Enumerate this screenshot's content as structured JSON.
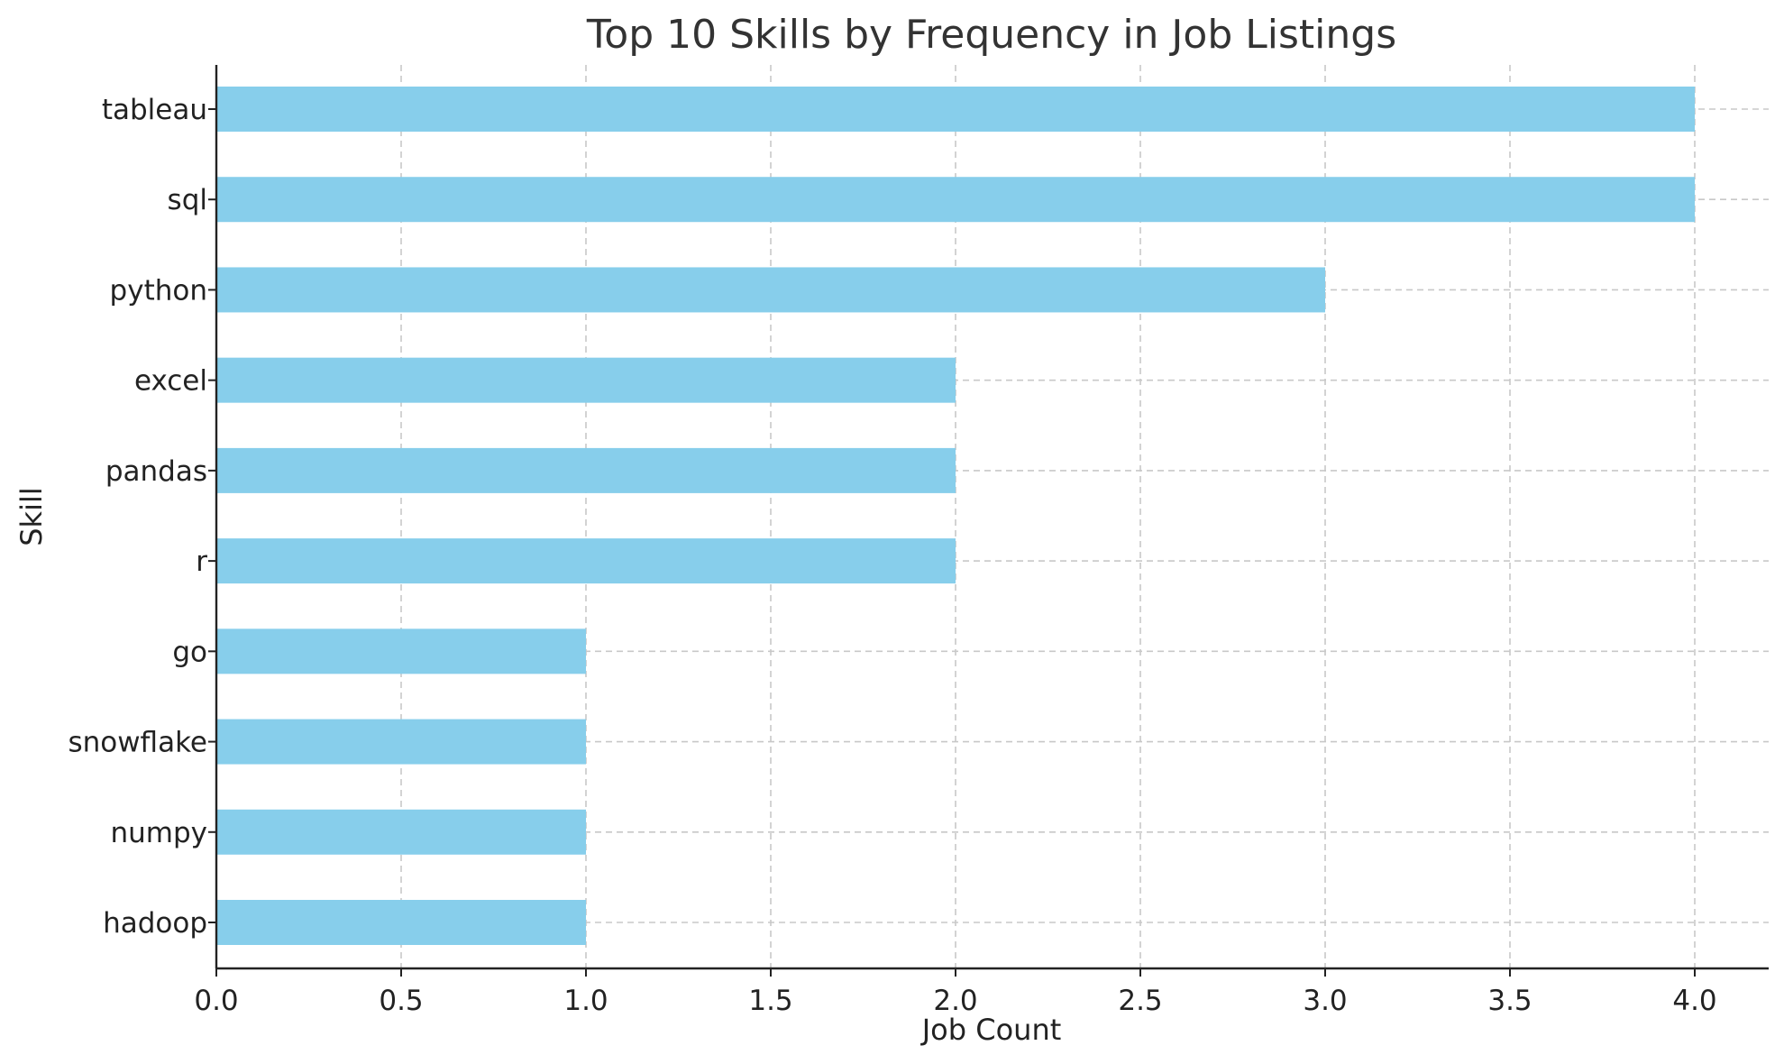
{
  "chart_data": {
    "type": "bar",
    "orientation": "horizontal",
    "title": "Top 10 Skills by Frequency in Job Listings",
    "xlabel": "Job Count",
    "ylabel": "Skill",
    "categories": [
      "tableau",
      "sql",
      "python",
      "excel",
      "pandas",
      "r",
      "go",
      "snowflake",
      "numpy",
      "hadoop"
    ],
    "values": [
      4,
      4,
      3,
      2,
      2,
      2,
      1,
      1,
      1,
      1
    ],
    "xlim": [
      0,
      4.2
    ],
    "xticks": [
      "0.0",
      "0.5",
      "1.0",
      "1.5",
      "2.0",
      "2.5",
      "3.0",
      "3.5",
      "4.0"
    ],
    "grid": true,
    "bar_color": "#87ceeb"
  }
}
